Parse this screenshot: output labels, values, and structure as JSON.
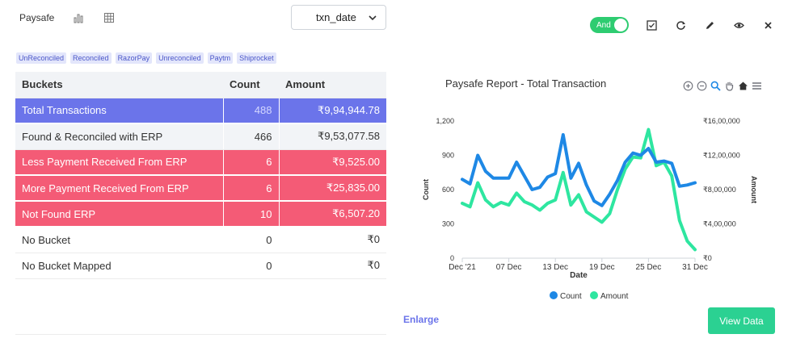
{
  "tabs": {
    "report_label": "Paysafe",
    "chart_icon": "bar-chart-icon",
    "grid_icon": "grid-icon"
  },
  "select": {
    "value": "txn_date"
  },
  "toolbar": {
    "toggle_label": "And",
    "icons": [
      "checkbox-icon",
      "refresh-icon",
      "pencil-icon",
      "eye-icon",
      "close-icon"
    ]
  },
  "tags": [
    "UnReconciled",
    "Reconciled",
    "RazorPay",
    "Unreconciled",
    "Paytm",
    "Shiprocket"
  ],
  "table": {
    "headers": [
      "Buckets",
      "Count",
      "Amount"
    ],
    "rows": [
      {
        "bucket": "Total  Transactions",
        "count": "488",
        "amount": "₹9,94,944.78",
        "style": "blue"
      },
      {
        "bucket": "Found & Reconciled with ERP",
        "count": "466",
        "amount": "₹9,53,077.58",
        "style": "grey"
      },
      {
        "bucket": "Less Payment Received From ERP",
        "count": "6",
        "amount": "₹9,525.00",
        "style": "red"
      },
      {
        "bucket": "More Payment Received From ERP",
        "count": "6",
        "amount": "₹25,835.00",
        "style": "red"
      },
      {
        "bucket": "Not Found ERP",
        "count": "10",
        "amount": "₹6,507.20",
        "style": "red"
      },
      {
        "bucket": "No Bucket",
        "count": "0",
        "amount": "₹0",
        "style": "plain"
      },
      {
        "bucket": "No Bucket Mapped",
        "count": "0",
        "amount": "₹0",
        "style": "plain"
      }
    ]
  },
  "chart_data": {
    "type": "line",
    "title": "Paysafe Report - Total Transaction",
    "xlabel": "Date",
    "ylabel_left": "Count",
    "ylabel_right": "Amount",
    "x_ticks": [
      "Dec '21",
      "07 Dec",
      "13 Dec",
      "19 Dec",
      "25 Dec",
      "31 Dec"
    ],
    "y_left_ticks": [
      "0",
      "300",
      "600",
      "900",
      "1,200"
    ],
    "y_right_ticks": [
      "₹0",
      "₹4,00,000",
      "₹8,00,000",
      "₹12,00,000",
      "₹16,00,000"
    ],
    "ylim_left": [
      0,
      1200
    ],
    "ylim_right": [
      0,
      1600000
    ],
    "series": [
      {
        "name": "Count",
        "color": "#1e88e5",
        "axis": "left",
        "values": [
          690,
          650,
          900,
          760,
          700,
          700,
          700,
          840,
          720,
          600,
          620,
          710,
          740,
          1080,
          700,
          830,
          640,
          500,
          460,
          560,
          680,
          840,
          920,
          900,
          960,
          840,
          850,
          830,
          630,
          640,
          660
        ]
      },
      {
        "name": "Amount",
        "color": "#2ee6a0",
        "axis": "right",
        "values": [
          640000,
          600000,
          880000,
          680000,
          600000,
          650000,
          620000,
          760000,
          660000,
          620000,
          560000,
          640000,
          680000,
          1000000,
          620000,
          740000,
          540000,
          480000,
          420000,
          520000,
          800000,
          1040000,
          1180000,
          1170000,
          1500000,
          1080000,
          1120000,
          960000,
          440000,
          200000,
          100000
        ]
      }
    ],
    "legend": "bottom-center",
    "grid": false
  },
  "actions": {
    "enlarge": "Enlarge",
    "view_data": "View Data"
  }
}
